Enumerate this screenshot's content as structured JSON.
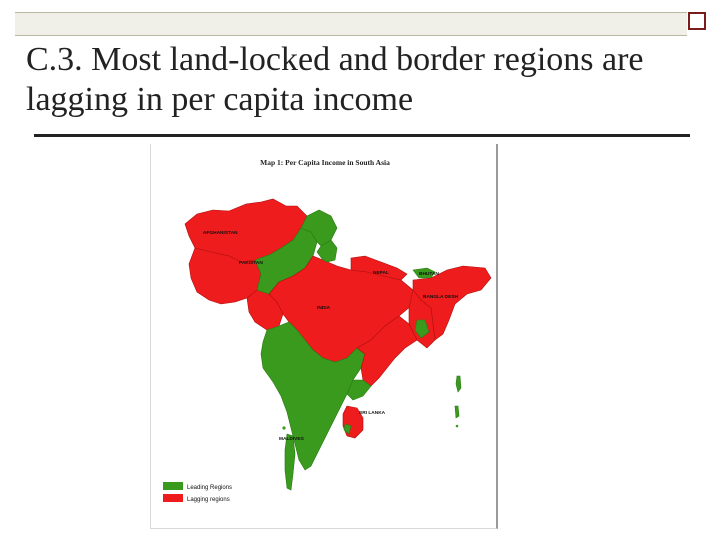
{
  "slide": {
    "title": "C.3. Most land-locked and border regions are lagging in per capita income"
  },
  "map": {
    "title": "Map 1: Per Capita Income in South Asia",
    "labels": {
      "afghanistan": "AFGHANISTAN",
      "pakistan": "PAKISTAN",
      "nepal": "NEPAL",
      "bhutan": "BHUTAN",
      "bangladesh": "BANGLA DESH",
      "india": "INDIA",
      "sri_lanka": "SRI LANKA",
      "maldives": "MALDIVES"
    },
    "legend": [
      {
        "label": "Leading Regions",
        "color": "#3a9a1e"
      },
      {
        "label": "Lagging regions",
        "color": "#ee1c1c"
      }
    ]
  },
  "colors": {
    "leading": "#3a9a1e",
    "lagging": "#ee1c1c",
    "accent": "#7a1c1c"
  }
}
